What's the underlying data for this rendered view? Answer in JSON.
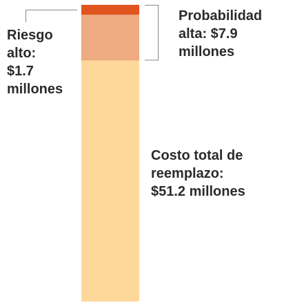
{
  "chart_data": {
    "type": "bar",
    "stacked": true,
    "unit": "millones",
    "total": 51.2,
    "segments": [
      {
        "key": "riesgo_alto",
        "value": 1.7,
        "color": "#e0541e",
        "label_lines": [
          "Riesgo",
          "alto:",
          "$1.7",
          "millones"
        ]
      },
      {
        "key": "probabilidad_alta",
        "value": 7.9,
        "color": "#eeaa80",
        "label_lines": [
          "Probabilidad",
          "alta: $7.9",
          "millones"
        ]
      },
      {
        "key": "costo_total",
        "value": 51.2,
        "color": "#fed89a",
        "label_lines": [
          "Costo total de",
          "reemplazo:",
          "$51.2 millones"
        ]
      }
    ],
    "leader_color": "#888888"
  }
}
